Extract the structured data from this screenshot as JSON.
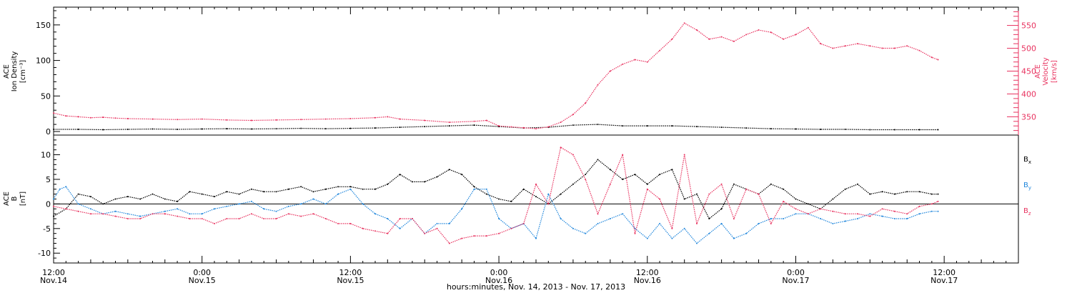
{
  "colors": {
    "ink": "#000000",
    "red": "#e8325f",
    "blue": "#1f86dc"
  },
  "x_axis": {
    "label": "hours:minutes, Nov. 14, 2013 - Nov. 17, 2013",
    "major_ticks": [
      {
        "hours": 0,
        "time": "12:00",
        "date": "Nov.14"
      },
      {
        "hours": 12,
        "time": "0:00",
        "date": "Nov.15"
      },
      {
        "hours": 24,
        "time": "12:00",
        "date": "Nov.15"
      },
      {
        "hours": 36,
        "time": "0:00",
        "date": "Nov.16"
      },
      {
        "hours": 48,
        "time": "12:00",
        "date": "Nov.16"
      },
      {
        "hours": 60,
        "time": "0:00",
        "date": "Nov.17"
      },
      {
        "hours": 72,
        "time": "12:00",
        "date": "Nov.17"
      }
    ]
  },
  "chart_data": [
    {
      "type": "line",
      "panel": "top",
      "xlim_hours": [
        0,
        78
      ],
      "ylabel_lines": [
        "ACE",
        "Ion Density",
        "[cm⁻³]"
      ],
      "y2label_lines": [
        "ACE",
        "Velocity",
        "[km/s]"
      ],
      "ylim": [
        -5,
        175
      ],
      "yticks": [
        0,
        50,
        100,
        150
      ],
      "ylim_right": [
        310,
        590
      ],
      "yticks_right": [
        350,
        400,
        450,
        500,
        550
      ],
      "series": [
        {
          "axis": "left",
          "color": "#000000",
          "x": [
            0,
            2,
            4,
            6,
            8,
            10,
            12,
            14,
            16,
            18,
            20,
            22,
            24,
            26,
            28,
            30,
            32,
            34,
            36,
            38,
            40,
            42,
            44,
            46,
            48,
            50,
            52,
            54,
            56,
            58,
            60,
            62,
            64,
            66,
            68,
            70,
            71.5
          ],
          "y": [
            3,
            3,
            2.5,
            3,
            3.5,
            3,
            3.5,
            4,
            3.5,
            4,
            4.5,
            4,
            4.5,
            5,
            6,
            7,
            8,
            9,
            7,
            5,
            6,
            9,
            10,
            8,
            8,
            8,
            7,
            6,
            5,
            4,
            3.5,
            3,
            3,
            2.5,
            2.5,
            2.5,
            2.5
          ]
        },
        {
          "axis": "right",
          "color": "#e8325f",
          "x": [
            0,
            1,
            2,
            3,
            4,
            5,
            6,
            8,
            10,
            12,
            14,
            16,
            18,
            20,
            22,
            24,
            26,
            27,
            28,
            30,
            32,
            34,
            35,
            36,
            37,
            38,
            39,
            40,
            41,
            42,
            43,
            44,
            45,
            46,
            47,
            48,
            49,
            50,
            51,
            52,
            53,
            54,
            55,
            56,
            57,
            58,
            59,
            60,
            61,
            62,
            63,
            64,
            65,
            66,
            67,
            68,
            69,
            70,
            71,
            71.5
          ],
          "y": [
            358,
            352,
            350,
            348,
            349,
            347,
            346,
            345,
            344,
            345,
            343,
            342,
            343,
            344,
            345,
            346,
            348,
            350,
            345,
            342,
            338,
            340,
            342,
            330,
            328,
            326,
            324,
            328,
            338,
            355,
            380,
            420,
            450,
            465,
            475,
            470,
            495,
            520,
            555,
            540,
            520,
            525,
            515,
            530,
            540,
            535,
            520,
            530,
            545,
            510,
            500,
            505,
            510,
            505,
            500,
            500,
            505,
            495,
            480,
            475
          ]
        }
      ]
    },
    {
      "type": "line",
      "panel": "bottom",
      "xlim_hours": [
        0,
        78
      ],
      "ylabel_lines": [
        "ACE",
        "B",
        "[nT]"
      ],
      "ylim": [
        -12,
        14
      ],
      "yticks": [
        -10,
        -5,
        0,
        5,
        10
      ],
      "zero_line": true,
      "series": [
        {
          "name": "Bx",
          "color": "#000000",
          "x": [
            0,
            1,
            2,
            3,
            4,
            5,
            6,
            7,
            8,
            9,
            10,
            11,
            12,
            13,
            14,
            15,
            16,
            17,
            18,
            19,
            20,
            21,
            22,
            23,
            24,
            25,
            26,
            27,
            28,
            29,
            30,
            31,
            32,
            33,
            34,
            35,
            36,
            37,
            38,
            39,
            40,
            41,
            42,
            43,
            44,
            45,
            46,
            47,
            48,
            49,
            50,
            51,
            52,
            53,
            54,
            55,
            56,
            57,
            58,
            59,
            60,
            61,
            62,
            63,
            64,
            65,
            66,
            67,
            68,
            69,
            70,
            71,
            71.5
          ],
          "y": [
            -2.5,
            -1,
            2,
            1.5,
            0,
            1,
            1.5,
            1,
            2,
            1,
            0.5,
            2.5,
            2,
            1.5,
            2.5,
            2,
            3,
            2.5,
            2.5,
            3,
            3.5,
            2.5,
            3,
            3.5,
            3.5,
            3,
            3,
            4,
            6,
            4.5,
            4.5,
            5.5,
            7,
            6,
            3.5,
            2,
            1,
            0.5,
            3,
            1.5,
            0,
            2,
            4,
            6,
            9,
            7,
            5,
            6,
            4,
            6,
            7,
            1,
            2,
            -3,
            -1,
            4,
            3,
            2,
            4,
            3,
            1,
            0,
            -1,
            1,
            3,
            4,
            2,
            2.5,
            2,
            2.5,
            2.5,
            2,
            2
          ]
        },
        {
          "name": "By",
          "color": "#1f86dc",
          "x": [
            0,
            0.5,
            1,
            2,
            3,
            4,
            5,
            6,
            7,
            8,
            9,
            10,
            11,
            12,
            13,
            14,
            15,
            16,
            17,
            18,
            19,
            20,
            21,
            22,
            23,
            24,
            25,
            26,
            27,
            28,
            29,
            30,
            31,
            32,
            33,
            34,
            35,
            36,
            37,
            38,
            39,
            40,
            41,
            42,
            43,
            44,
            45,
            46,
            47,
            48,
            49,
            50,
            51,
            52,
            53,
            54,
            55,
            56,
            57,
            58,
            59,
            60,
            61,
            62,
            63,
            64,
            65,
            66,
            67,
            68,
            69,
            70,
            71,
            71.5
          ],
          "y": [
            1,
            3,
            3.5,
            0,
            -1,
            -2,
            -1.5,
            -2,
            -2.5,
            -2,
            -1.5,
            -1,
            -2,
            -2,
            -1,
            -0.5,
            0,
            0.5,
            -1,
            -1.5,
            -0.5,
            0,
            1,
            0,
            2,
            3,
            0,
            -2,
            -3,
            -5,
            -3,
            -6,
            -4,
            -4,
            -1,
            3,
            3,
            -3,
            -5,
            -4,
            -7,
            2,
            -3,
            -5,
            -6,
            -4,
            -3,
            -2,
            -5,
            -7,
            -4,
            -7,
            -5,
            -8,
            -6,
            -4,
            -7,
            -6,
            -4,
            -3,
            -3,
            -2,
            -2,
            -3,
            -4,
            -3.5,
            -3,
            -2,
            -2.5,
            -3,
            -3,
            -2,
            -1.5,
            -1.5
          ]
        },
        {
          "name": "Bz",
          "color": "#e8325f",
          "x": [
            0,
            1,
            2,
            3,
            4,
            5,
            6,
            7,
            8,
            9,
            10,
            11,
            12,
            13,
            14,
            15,
            16,
            17,
            18,
            19,
            20,
            21,
            22,
            23,
            24,
            25,
            26,
            27,
            28,
            29,
            30,
            31,
            32,
            33,
            34,
            35,
            36,
            37,
            38,
            39,
            40,
            41,
            42,
            43,
            44,
            45,
            46,
            47,
            48,
            49,
            50,
            51,
            52,
            53,
            54,
            55,
            56,
            57,
            58,
            59,
            60,
            61,
            62,
            63,
            64,
            65,
            66,
            67,
            68,
            69,
            70,
            71,
            71.5
          ],
          "y": [
            -0.5,
            -1,
            -1.5,
            -2,
            -2,
            -2.5,
            -3,
            -3,
            -2,
            -2,
            -2.5,
            -3,
            -3,
            -4,
            -3,
            -3,
            -2,
            -3,
            -3,
            -2,
            -2.5,
            -2,
            -3,
            -4,
            -4,
            -5,
            -5.5,
            -6,
            -3,
            -3,
            -6,
            -5,
            -8,
            -7,
            -6.5,
            -6.5,
            -6,
            -5,
            -4,
            4,
            0,
            11.5,
            10,
            5,
            -2,
            4,
            10,
            -6,
            3,
            1,
            -5,
            10,
            -4,
            2,
            4,
            -3,
            3,
            2,
            -4,
            0.5,
            -1,
            -2,
            -1,
            -1.5,
            -2,
            -2,
            -2.5,
            -1,
            -1.5,
            -2,
            -0.5,
            0,
            0.5
          ]
        }
      ]
    }
  ]
}
